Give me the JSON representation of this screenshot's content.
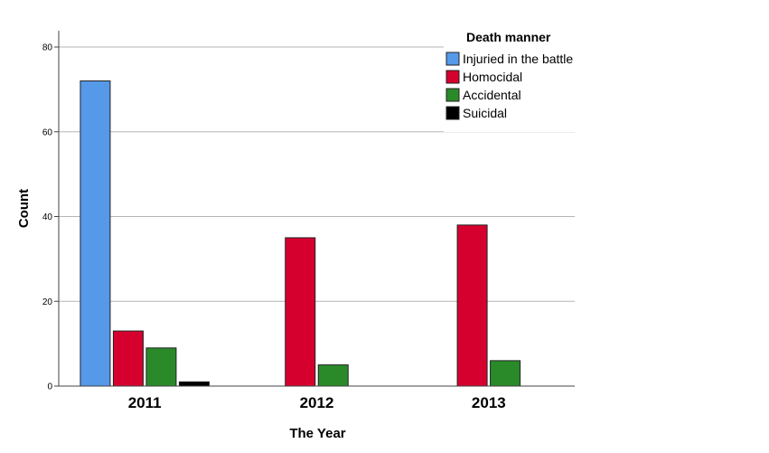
{
  "chart_data": {
    "type": "bar",
    "xlabel": "The Year",
    "ylabel": "Count",
    "categories": [
      "2011",
      "2012",
      "2013"
    ],
    "ylim": [
      0,
      80
    ],
    "yticks": [
      0,
      20,
      40,
      60,
      80
    ],
    "grid": true,
    "legend": {
      "title": "Death manner",
      "placement": "top-right"
    },
    "series": [
      {
        "name": "Injuried in the battle",
        "color": "#5599e8",
        "values": [
          72,
          0,
          0
        ]
      },
      {
        "name": "Homocidal",
        "color": "#d6002f",
        "values": [
          13,
          35,
          38
        ]
      },
      {
        "name": "Accidental",
        "color": "#2a8a2a",
        "values": [
          9,
          5,
          6
        ]
      },
      {
        "name": "Suicidal",
        "color": "#000000",
        "values": [
          1,
          0,
          0
        ]
      }
    ]
  }
}
